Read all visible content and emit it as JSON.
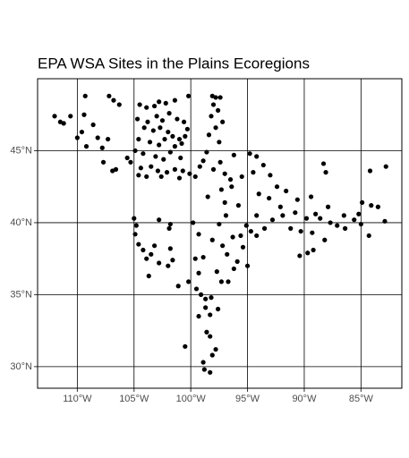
{
  "chart_data": {
    "type": "scatter",
    "title": "EPA WSA Sites in the Plains Ecoregions",
    "color": "#000000",
    "grid": true,
    "xlim": [
      -113.5,
      -81.4
    ],
    "ylim": [
      28.5,
      50
    ],
    "xticks": [
      {
        "value": -110,
        "label": "110°W"
      },
      {
        "value": -105,
        "label": "105°W"
      },
      {
        "value": -100,
        "label": "100°W"
      },
      {
        "value": -95,
        "label": "95°W"
      },
      {
        "value": -90,
        "label": "90°W"
      },
      {
        "value": -85,
        "label": "85°W"
      }
    ],
    "yticks": [
      {
        "value": 30,
        "label": "30°N"
      },
      {
        "value": 35,
        "label": "35°N"
      },
      {
        "value": 40,
        "label": "40°N"
      },
      {
        "value": 45,
        "label": "45°N"
      }
    ],
    "x": [
      -112,
      -111.5,
      -111.2,
      -110.6,
      -109.3,
      -109.4,
      -109.6,
      -110,
      -109.2,
      -108.2,
      -107.8,
      -107.2,
      -106.8,
      -106.3,
      -107.3,
      -108.6,
      -106.9,
      -106.6,
      -107.7,
      -104.5,
      -103.9,
      -103.2,
      -102.8,
      -102.2,
      -101.4,
      -100.2,
      -104.7,
      -103.8,
      -103,
      -102.5,
      -101.9,
      -101.2,
      -100.6,
      -100.3,
      -104.1,
      -103.3,
      -102.7,
      -102,
      -101.6,
      -101,
      -100.5,
      -104.6,
      -103.6,
      -102.8,
      -102.3,
      -101.4,
      -100.8,
      -104.9,
      -104.2,
      -103.1,
      -102.4,
      -101.8,
      -100.9,
      -105.3,
      -104.4,
      -103.5,
      -102.9,
      -102.1,
      -101.4,
      -100.7,
      -100.1,
      -99.6,
      -103.9,
      -102.6,
      -101,
      -104.6,
      -105.6,
      -98.1,
      -97.8,
      -97.4,
      -98,
      -97.6,
      -98.2,
      -97.2,
      -97.8,
      -98.4,
      -97.5,
      -98.6,
      -97.4,
      -98,
      -97,
      -96.5,
      -98.9,
      -96.2,
      -99.2,
      -96.4,
      -97.3,
      -98.5,
      -97,
      -95.8,
      -94.8,
      -94.2,
      -93.6,
      -94.5,
      -93,
      -92.4,
      -91.6,
      -90.6,
      -89.4,
      -88.3,
      -88.1,
      -87.9,
      -88.6,
      -89.8,
      -90.3,
      -91.2,
      -91.9,
      -92.8,
      -93.5,
      -94.2,
      -95.1,
      -95.6,
      -89.3,
      -87.7,
      -87.1,
      -86.4,
      -85.6,
      -85.2,
      -84.9,
      -84.1,
      -83.5,
      -82.9,
      -84.3,
      -85,
      -84.2,
      -82.8,
      -86.5,
      -88.2,
      -89.2,
      -89.7,
      -90.4,
      -94,
      -95.5,
      -93.1,
      -92.1,
      -90.8,
      -89,
      -105,
      -104.8,
      -104.9,
      -104.6,
      -104.2,
      -103.9,
      -103.5,
      -103.2,
      -102.8,
      -101.8,
      -101.6,
      -103.7,
      -101.8,
      -101.9,
      -102.8,
      -102,
      -101.1,
      -99.8,
      -99.3,
      -99.6,
      -98.9,
      -99.3,
      -99.5,
      -99.1,
      -98.7,
      -98.2,
      -99.3,
      -98.6,
      -98.3,
      -97.8,
      -98.1,
      -98.9,
      -98.8,
      -98.3,
      -100.5,
      -98.3,
      -97.6,
      -97.3,
      -97.7,
      -96.7,
      -96.2,
      -96.8,
      -95.9,
      -97.2,
      -96.3,
      -97.5,
      -96.9,
      -95.4,
      -94.7,
      -94.2,
      -98.1,
      -95,
      -100.2,
      -98.7
    ],
    "values": [
      47.4,
      47,
      46.9,
      47.4,
      48.8,
      47.5,
      46.3,
      45.9,
      45.3,
      45.9,
      45.2,
      48.8,
      48.5,
      48.2,
      45.8,
      46.8,
      43.6,
      43.7,
      44.2,
      48.2,
      48,
      48.1,
      48.4,
      48.3,
      48.5,
      48.8,
      47.2,
      47,
      47.4,
      47.1,
      47.6,
      47.2,
      47,
      46.5,
      46.6,
      46.4,
      46.6,
      46.3,
      46,
      45.8,
      46,
      45.8,
      45.6,
      45.4,
      45.8,
      45.3,
      45.5,
      45,
      44.8,
      44.6,
      44.4,
      44.9,
      44.5,
      44.2,
      43.8,
      43.9,
      43.6,
      43.5,
      43.7,
      43.6,
      43.4,
      43.2,
      43.2,
      43.2,
      43.1,
      43.3,
      44.5,
      48.8,
      48.7,
      48.7,
      48.2,
      47.8,
      47.4,
      47,
      46.6,
      46.1,
      45.6,
      44.9,
      44.2,
      43.7,
      43.4,
      43,
      44.3,
      44.7,
      43.9,
      42.5,
      42.3,
      41.8,
      41.4,
      41.2,
      44.8,
      44.6,
      44,
      43.5,
      43.3,
      42.5,
      42.2,
      41.6,
      41.8,
      44.1,
      43.5,
      41.1,
      40.3,
      40.3,
      39.4,
      39.6,
      40.5,
      40.2,
      39.6,
      40.5,
      39.8,
      39.1,
      39.3,
      40,
      39.8,
      39.6,
      40.2,
      40.6,
      41.4,
      41.2,
      41.1,
      40.1,
      39.1,
      39.9,
      43.6,
      43.9,
      40.5,
      38.8,
      38.1,
      37.9,
      37.7,
      42,
      43.2,
      41.7,
      41.1,
      40.7,
      40.6,
      40.3,
      39.8,
      39.2,
      38.5,
      38.1,
      37.5,
      37.8,
      38.4,
      37.2,
      38.2,
      37.4,
      36.3,
      39.9,
      39.6,
      40.2,
      37,
      35.6,
      40,
      39.2,
      37.5,
      37.6,
      36.5,
      35.4,
      35,
      34.7,
      34.8,
      33.5,
      32.4,
      32.1,
      31.2,
      30.8,
      30.3,
      29.8,
      29.6,
      31.4,
      33.6,
      34,
      35.9,
      36.6,
      35.9,
      36.8,
      37.8,
      37.3,
      38.4,
      39,
      39.9,
      40.5,
      38.3,
      39.4,
      39.1,
      38.8,
      37,
      35.9,
      34.1
    ]
  }
}
